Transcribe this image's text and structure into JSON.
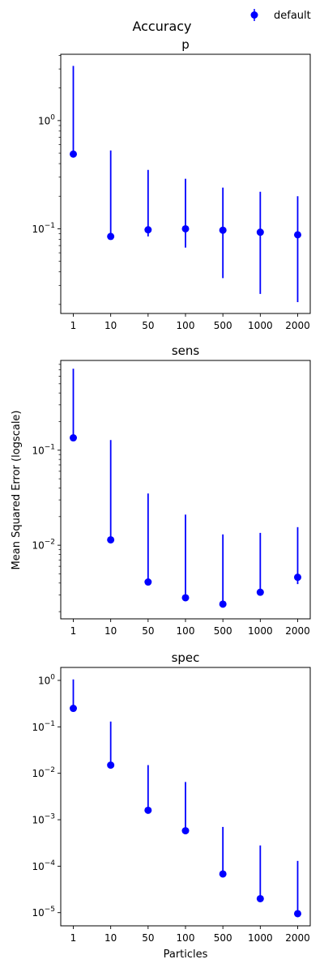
{
  "figure": {
    "suptitle": "Accuracy",
    "legend": {
      "label": "default",
      "placement": "top-right",
      "color": "#0000ff"
    },
    "ylabel": "Mean Squared Error (logscale)",
    "xlabel": "Particles"
  },
  "chart_data": [
    {
      "type": "scatter",
      "title": "p",
      "yscale": "log",
      "categories": [
        "1",
        "10",
        "50",
        "100",
        "500",
        "1000",
        "2000"
      ],
      "ylim": [
        0.0165,
        4.1
      ],
      "yticks": [
        {
          "value": 1,
          "label": "10^0"
        },
        {
          "value": 0.1,
          "label": "10^-1"
        }
      ],
      "minor_yticks": [
        0.02,
        0.03,
        0.04,
        0.05,
        0.06,
        0.07,
        0.08,
        0.09,
        0.2,
        0.3,
        0.4,
        0.5,
        0.6,
        0.7,
        0.8,
        0.9,
        2,
        3,
        4
      ],
      "series": [
        {
          "name": "default",
          "color": "#0000ff",
          "values": [
            0.49,
            0.085,
            0.098,
            0.1,
            0.097,
            0.093,
            0.088
          ],
          "err_low": [
            0.49,
            0.085,
            0.085,
            0.067,
            0.035,
            0.025,
            0.021
          ],
          "err_high": [
            3.2,
            0.53,
            0.35,
            0.29,
            0.24,
            0.22,
            0.2
          ]
        }
      ]
    },
    {
      "type": "scatter",
      "title": "sens",
      "yscale": "log",
      "categories": [
        "1",
        "10",
        "50",
        "100",
        "500",
        "1000",
        "2000"
      ],
      "ylim": [
        0.00168,
        0.88
      ],
      "yticks": [
        {
          "value": 0.1,
          "label": "10^-1"
        },
        {
          "value": 0.01,
          "label": "10^-2"
        }
      ],
      "minor_yticks": [
        0.002,
        0.003,
        0.004,
        0.005,
        0.006,
        0.007,
        0.008,
        0.009,
        0.02,
        0.03,
        0.04,
        0.05,
        0.06,
        0.07,
        0.08,
        0.09,
        0.2,
        0.3,
        0.4,
        0.5,
        0.6,
        0.7,
        0.8
      ],
      "series": [
        {
          "name": "default",
          "color": "#0000ff",
          "values": [
            0.135,
            0.0114,
            0.0041,
            0.0028,
            0.0024,
            0.0032,
            0.0046
          ],
          "err_low": [
            0.135,
            0.0114,
            0.0041,
            0.0028,
            0.0024,
            0.0032,
            0.0039
          ],
          "err_high": [
            0.72,
            0.128,
            0.035,
            0.021,
            0.013,
            0.0135,
            0.0155
          ]
        }
      ]
    },
    {
      "type": "scatter",
      "title": "spec",
      "yscale": "log",
      "categories": [
        "1",
        "10",
        "50",
        "100",
        "500",
        "1000",
        "2000"
      ],
      "ylim": [
        5.2e-06,
        1.9
      ],
      "yticks": [
        {
          "value": 1,
          "label": "10^0"
        },
        {
          "value": 0.1,
          "label": "10^-1"
        },
        {
          "value": 0.01,
          "label": "10^-2"
        },
        {
          "value": 0.001,
          "label": "10^-3"
        },
        {
          "value": 0.0001,
          "label": "10^-4"
        },
        {
          "value": 1e-05,
          "label": "10^-5"
        }
      ],
      "minor_yticks": [],
      "series": [
        {
          "name": "default",
          "color": "#0000ff",
          "values": [
            0.25,
            0.015,
            0.0016,
            0.00058,
            6.8e-05,
            2e-05,
            9.5e-06
          ],
          "err_low": [
            0.25,
            0.015,
            0.0016,
            0.00058,
            6.8e-05,
            2e-05,
            9.5e-06
          ],
          "err_high": [
            1.05,
            0.13,
            0.015,
            0.0065,
            0.0007,
            0.00028,
            0.00013
          ]
        }
      ]
    }
  ]
}
